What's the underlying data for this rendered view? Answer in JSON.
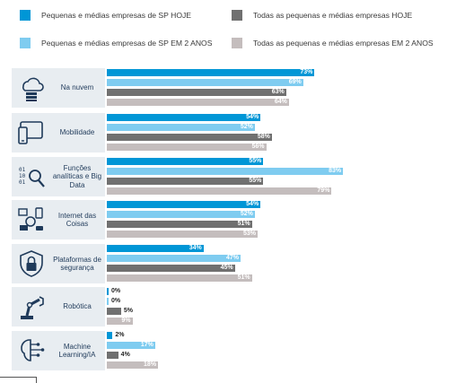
{
  "colors": {
    "sp_today": "#0096d6",
    "all_today": "#707070",
    "sp_2y": "#7fccf0",
    "all_2y": "#c4bdbd",
    "category_bg": "#e8edf1",
    "icon_color": "#1f3a5a"
  },
  "legend": [
    {
      "label": "Pequenas e médias empresas de SP HOJE",
      "color": "#0096d6"
    },
    {
      "label": "Todas as pequenas e médias empresas HOJE",
      "color": "#707070"
    },
    {
      "label": "Pequenas e médias empresas de SP EM 2 ANOS",
      "color": "#7fccf0"
    },
    {
      "label": "Todas as pequenas e médias empresas EM 2 ANOS",
      "color": "#c4bdbd"
    }
  ],
  "chart_data": {
    "type": "bar",
    "orientation": "horizontal",
    "grouped": true,
    "categories": [
      {
        "label": "Na nuvem",
        "icon": "cloud-server-icon"
      },
      {
        "label": "Mobilidade",
        "icon": "tablet-phone-icon"
      },
      {
        "label": "Funções analíticas e Big Data",
        "icon": "binary-magnifier-icon"
      },
      {
        "label": "Internet das Coisas",
        "icon": "connected-devices-icon"
      },
      {
        "label": "Plataformas de segurança",
        "icon": "shield-lock-icon"
      },
      {
        "label": "Robótica",
        "icon": "robot-arm-icon"
      },
      {
        "label": "Machine Learning/IA",
        "icon": "brain-circuit-icon"
      }
    ],
    "series": [
      {
        "name": "Pequenas e médias empresas de SP HOJE",
        "color": "#0096d6",
        "values": [
          73,
          54,
          55,
          54,
          34,
          0,
          2
        ]
      },
      {
        "name": "Pequenas e médias empresas de SP EM 2 ANOS",
        "color": "#7fccf0",
        "values": [
          69,
          52,
          83,
          52,
          47,
          0,
          17
        ]
      },
      {
        "name": "Todas as pequenas e médias empresas HOJE",
        "color": "#707070",
        "values": [
          63,
          58,
          55,
          51,
          45,
          5,
          4
        ]
      },
      {
        "name": "Todas as pequenas e médias empresas EM 2 ANOS",
        "color": "#c4bdbd",
        "values": [
          64,
          56,
          79,
          53,
          51,
          9,
          18
        ]
      }
    ],
    "value_suffix": "%",
    "xlim": [
      0,
      100
    ]
  }
}
